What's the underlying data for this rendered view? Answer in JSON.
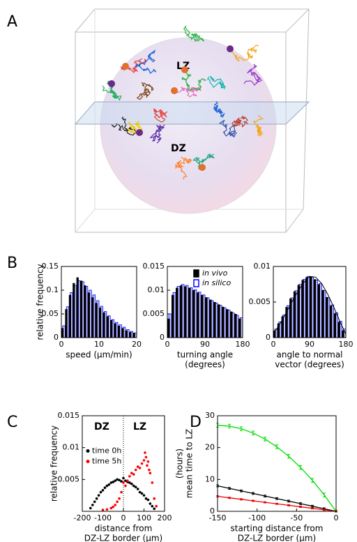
{
  "panel_labels": [
    "A",
    "B",
    "C",
    "D"
  ],
  "panel_a": {
    "labels": [
      "LZ",
      "DZ"
    ]
  },
  "chart_data": [
    {
      "type": "histogram",
      "xlabel": [
        "speed (µm/min)"
      ],
      "ylabel": "relative frequency",
      "bins": [
        0,
        1,
        2,
        3,
        4,
        5,
        6,
        7,
        8,
        9,
        10,
        11,
        12,
        13,
        14,
        15,
        16,
        17,
        18,
        19,
        20
      ],
      "series": [
        {
          "color": "#000000",
          "values": [
            0.02,
            0.06,
            0.09,
            0.115,
            0.127,
            0.12,
            0.11,
            0.095,
            0.085,
            0.073,
            0.063,
            0.053,
            0.045,
            0.037,
            0.03,
            0.025,
            0.02,
            0.015,
            0.012,
            0.01
          ]
        },
        {
          "color": "#0000ff",
          "values": [
            0.025,
            0.065,
            0.095,
            0.11,
            0.12,
            0.118,
            0.108,
            0.1,
            0.09,
            0.078,
            0.066,
            0.055,
            0.046,
            0.038,
            0.032,
            0.027,
            0.022,
            0.017,
            0.013,
            0.01
          ]
        }
      ],
      "xlim": [
        0,
        20
      ],
      "xticks": [
        0,
        10,
        20
      ],
      "ylim": [
        0,
        0.15
      ],
      "yticks": [
        0,
        0.05,
        0.1,
        0.15
      ]
    },
    {
      "type": "histogram",
      "xlabel": [
        "turning angle",
        "(degrees)"
      ],
      "bins": [
        0,
        10,
        20,
        30,
        40,
        50,
        60,
        70,
        80,
        90,
        100,
        110,
        120,
        130,
        140,
        150,
        160,
        170,
        180
      ],
      "series": [
        {
          "name": "in vivo",
          "color": "#000000",
          "values": [
            0.004,
            0.009,
            0.0105,
            0.011,
            0.0108,
            0.0105,
            0.01,
            0.0095,
            0.009,
            0.0085,
            0.008,
            0.0075,
            0.007,
            0.0065,
            0.006,
            0.0055,
            0.005,
            0.004
          ]
        },
        {
          "name": "in silico",
          "color": "#0000ff",
          "values": [
            0.005,
            0.0095,
            0.0108,
            0.0112,
            0.011,
            0.0105,
            0.0101,
            0.0096,
            0.009,
            0.0084,
            0.0078,
            0.0073,
            0.0068,
            0.0063,
            0.0058,
            0.0052,
            0.0047,
            0.0042
          ]
        }
      ],
      "legend": "upper right",
      "xlim": [
        0,
        180
      ],
      "xticks": [
        0,
        90,
        180
      ],
      "ylim": [
        0,
        0.015
      ],
      "yticks": [
        0,
        0.005,
        0.01,
        0.015
      ]
    },
    {
      "type": "histogram",
      "xlabel": [
        "angle to normal",
        "vector (degrees)"
      ],
      "bins": [
        0,
        10,
        20,
        30,
        40,
        50,
        60,
        70,
        80,
        90,
        100,
        110,
        120,
        130,
        140,
        150,
        160,
        170,
        180
      ],
      "series": [
        {
          "color": "#000000",
          "values": [
            0.001,
            0.002,
            0.003,
            0.0043,
            0.0055,
            0.0065,
            0.0074,
            0.0081,
            0.0085,
            0.0086,
            0.0082,
            0.0075,
            0.0067,
            0.0057,
            0.0045,
            0.0034,
            0.0022,
            0.001
          ]
        },
        {
          "color": "#0000ff",
          "values": [
            0.0012,
            0.0022,
            0.0032,
            0.0045,
            0.0056,
            0.0066,
            0.0075,
            0.0082,
            0.0086,
            0.0085,
            0.0081,
            0.0076,
            0.0066,
            0.0056,
            0.0046,
            0.0035,
            0.0023,
            0.0012
          ]
        }
      ],
      "fit": {
        "color": "#000000",
        "x": [
          0,
          15,
          30,
          45,
          60,
          75,
          90,
          105,
          120,
          135,
          150,
          165,
          180
        ],
        "y": [
          0.0005,
          0.0018,
          0.0033,
          0.0049,
          0.0064,
          0.0077,
          0.0086,
          0.0085,
          0.0076,
          0.0061,
          0.0043,
          0.0023,
          0.0005
        ]
      },
      "xlim": [
        0,
        180
      ],
      "xticks": [
        0,
        90,
        180
      ],
      "ylim": [
        0,
        0.01
      ],
      "yticks": [
        0,
        0.005,
        0.01
      ]
    },
    {
      "type": "scatter",
      "xlabel": [
        "distance from",
        "DZ-LZ border (µm)"
      ],
      "ylabel": "relative frequency",
      "annotations": [
        "DZ",
        "LZ"
      ],
      "vlines": [
        0
      ],
      "legend": "center left",
      "series": [
        {
          "name": "time 0h",
          "color": "#000000",
          "x": [
            -160,
            -150,
            -140,
            -130,
            -120,
            -110,
            -100,
            -90,
            -80,
            -70,
            -60,
            -50,
            -40,
            -30,
            -20,
            -10,
            0,
            10,
            20,
            30,
            40,
            50,
            60,
            70,
            80,
            90,
            100,
            110,
            120,
            130,
            140,
            150
          ],
          "values": [
            0.0005,
            0.001,
            0.0015,
            0.002,
            0.0025,
            0.003,
            0.0033,
            0.0037,
            0.004,
            0.0042,
            0.0045,
            0.0046,
            0.0048,
            0.005,
            0.0049,
            0.0047,
            0.0052,
            0.0048,
            0.0046,
            0.0045,
            0.0043,
            0.004,
            0.0038,
            0.0035,
            0.003,
            0.0028,
            0.0025,
            0.002,
            0.0018,
            0.0012,
            0.0008,
            0.0004
          ]
        },
        {
          "name": "time 5h",
          "color": "#ff0000",
          "x": [
            -100,
            -80,
            -60,
            -50,
            -40,
            -30,
            -20,
            -10,
            0,
            10,
            20,
            30,
            40,
            50,
            60,
            70,
            80,
            90,
            100,
            105,
            110,
            115,
            120,
            125,
            130,
            140,
            150,
            160
          ],
          "values": [
            0.0002,
            0.0003,
            0.0005,
            0.0007,
            0.001,
            0.0015,
            0.002,
            0.003,
            0.0045,
            0.004,
            0.0048,
            0.0055,
            0.006,
            0.0058,
            0.0065,
            0.007,
            0.0068,
            0.0075,
            0.008,
            0.0092,
            0.0085,
            0.0072,
            0.0078,
            0.0065,
            0.006,
            0.0045,
            0.002,
            0.0008
          ]
        }
      ],
      "xlim": [
        -200,
        200
      ],
      "xticks": [
        -200,
        -100,
        0,
        100,
        200
      ],
      "ylim": [
        0,
        0.015
      ],
      "yticks": [
        0.005,
        0.01,
        0.015
      ]
    },
    {
      "type": "line",
      "xlabel": [
        "starting distance from",
        "DZ-LZ border (µm)"
      ],
      "ylabel": [
        "mean time to LZ",
        "(hours)"
      ],
      "x": [
        -150,
        -135,
        -120,
        -105,
        -90,
        -75,
        -60,
        -45,
        -30,
        -15,
        0
      ],
      "series": [
        {
          "color": "#00dd00",
          "values": [
            27,
            26.73,
            25.92,
            24.57,
            22.68,
            20.25,
            17.28,
            13.77,
            9.72,
            5.13,
            0
          ],
          "errors": [
            0.6,
            0.6,
            0.6,
            0.6,
            0.6,
            0.6,
            0.6,
            0.6,
            0.6,
            0.6,
            0.3
          ]
        },
        {
          "color": "#000000",
          "values": [
            8,
            7.2,
            6.4,
            5.6,
            4.8,
            4,
            3.2,
            2.4,
            1.6,
            0.8,
            0
          ],
          "errors": [
            0.3,
            0.3,
            0.3,
            0.3,
            0.3,
            0.3,
            0.3,
            0.3,
            0.3,
            0.3,
            0.1
          ]
        },
        {
          "color": "#ee0000",
          "values": [
            4.7,
            4.23,
            3.76,
            3.29,
            2.82,
            2.35,
            1.88,
            1.41,
            0.94,
            0.47,
            0
          ],
          "errors": [
            0.2,
            0.2,
            0.2,
            0.2,
            0.2,
            0.2,
            0.2,
            0.2,
            0.2,
            0.2,
            0.1
          ]
        }
      ],
      "xlim": [
        -150,
        0
      ],
      "xticks": [
        -150,
        -100,
        -50,
        0
      ],
      "ylim": [
        0,
        30
      ],
      "yticks": [
        0,
        10,
        20,
        30
      ]
    }
  ]
}
